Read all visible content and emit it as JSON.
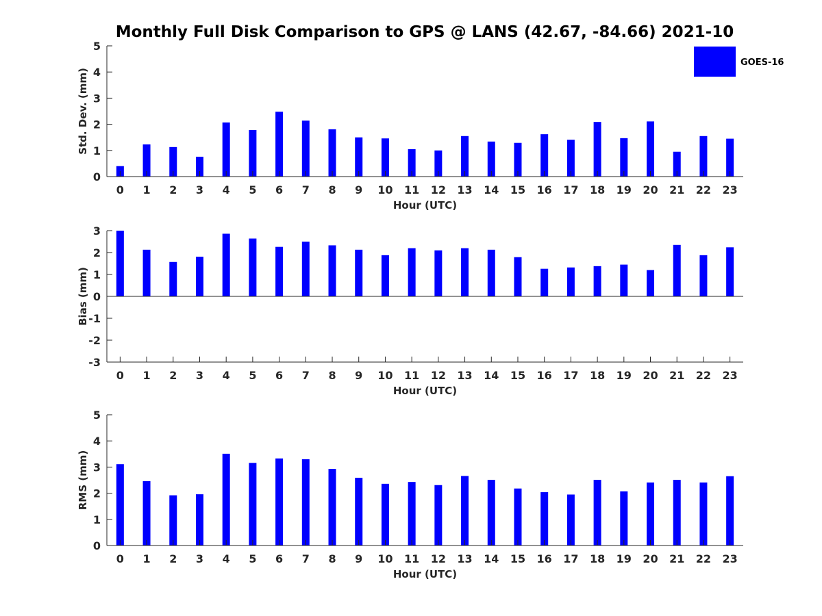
{
  "title": "Monthly Full Disk Comparison to GPS @ LANS (42.67, -84.66) 2021-10",
  "legend": {
    "label": "GOES-16",
    "color": "#0000ff",
    "placement": "top-right"
  },
  "chart_data": [
    {
      "type": "bar",
      "xlabel": "Hour (UTC)",
      "ylabel": "Std. Dev. (mm)",
      "ylim": [
        0,
        5
      ],
      "yticks": [
        0,
        1,
        2,
        3,
        4,
        5
      ],
      "categories": [
        "0",
        "1",
        "2",
        "3",
        "4",
        "5",
        "6",
        "7",
        "8",
        "9",
        "10",
        "11",
        "12",
        "13",
        "14",
        "15",
        "16",
        "17",
        "18",
        "19",
        "20",
        "21",
        "22",
        "23"
      ],
      "series": [
        {
          "name": "GOES-16",
          "values": [
            0.4,
            1.23,
            1.13,
            0.76,
            2.07,
            1.78,
            2.48,
            2.14,
            1.81,
            1.5,
            1.46,
            1.05,
            1.0,
            1.55,
            1.34,
            1.29,
            1.62,
            1.41,
            2.09,
            1.47,
            2.11,
            0.95,
            1.55,
            1.45
          ]
        }
      ]
    },
    {
      "type": "bar",
      "xlabel": "Hour (UTC)",
      "ylabel": "Bias (mm)",
      "ylim": [
        -3,
        3
      ],
      "yticks": [
        -3,
        -2,
        -1,
        0,
        1,
        2,
        3
      ],
      "categories": [
        "0",
        "1",
        "2",
        "3",
        "4",
        "5",
        "6",
        "7",
        "8",
        "9",
        "10",
        "11",
        "12",
        "13",
        "14",
        "15",
        "16",
        "17",
        "18",
        "19",
        "20",
        "21",
        "22",
        "23"
      ],
      "series": [
        {
          "name": "GOES-16",
          "values": [
            3.0,
            2.13,
            1.57,
            1.81,
            2.86,
            2.64,
            2.26,
            2.5,
            2.33,
            2.13,
            1.88,
            2.2,
            2.1,
            2.2,
            2.13,
            1.79,
            1.26,
            1.32,
            1.38,
            1.45,
            1.2,
            2.35,
            1.88,
            2.24
          ]
        }
      ]
    },
    {
      "type": "bar",
      "xlabel": "Hour (UTC)",
      "ylabel": "RMS (mm)",
      "ylim": [
        0,
        5
      ],
      "yticks": [
        0,
        1,
        2,
        3,
        4,
        5
      ],
      "categories": [
        "0",
        "1",
        "2",
        "3",
        "4",
        "5",
        "6",
        "7",
        "8",
        "9",
        "10",
        "11",
        "12",
        "13",
        "14",
        "15",
        "16",
        "17",
        "18",
        "19",
        "20",
        "21",
        "22",
        "23"
      ],
      "series": [
        {
          "name": "GOES-16",
          "values": [
            3.11,
            2.46,
            1.92,
            1.96,
            3.51,
            3.16,
            3.33,
            3.3,
            2.93,
            2.59,
            2.36,
            2.43,
            2.31,
            2.66,
            2.51,
            2.18,
            2.04,
            1.95,
            2.51,
            2.07,
            2.41,
            2.51,
            2.41,
            2.65
          ]
        }
      ]
    }
  ]
}
